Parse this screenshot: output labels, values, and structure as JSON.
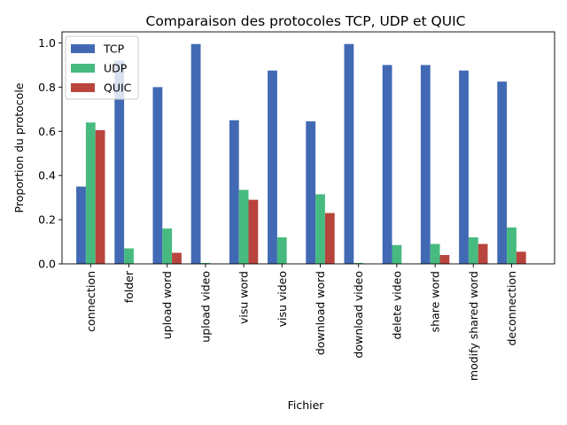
{
  "chart_data": {
    "type": "bar",
    "title": "Comparaison des protocoles TCP, UDP et QUIC",
    "xlabel": "Fichier",
    "ylabel": "Proportion du protocole",
    "ylim": [
      0,
      1.05
    ],
    "yticks": [
      "0.0",
      "0.2",
      "0.4",
      "0.6",
      "0.8",
      "1.0"
    ],
    "grid": false,
    "legend_position": "top-left",
    "categories": [
      "connection",
      "folder",
      "upload word",
      "upload video",
      "visu word",
      "visu video",
      "download word",
      "download video",
      "delete video",
      "share word",
      "modify shared word",
      "deconnection"
    ],
    "series": [
      {
        "name": "TCP",
        "color": "#4169b4",
        "values": [
          0.35,
          0.92,
          0.8,
          0.995,
          0.65,
          0.875,
          0.645,
          0.995,
          0.9,
          0.9,
          0.875,
          0.825
        ]
      },
      {
        "name": "UDP",
        "color": "#47bb7f",
        "values": [
          0.64,
          0.07,
          0.16,
          0.004,
          0.335,
          0.12,
          0.315,
          0.004,
          0.085,
          0.09,
          0.12,
          0.165
        ]
      },
      {
        "name": "QUIC",
        "color": "#b9443e",
        "values": [
          0.605,
          0.0,
          0.05,
          0.0,
          0.29,
          0.0,
          0.23,
          0.0,
          0.0,
          0.04,
          0.09,
          0.055
        ]
      }
    ]
  }
}
